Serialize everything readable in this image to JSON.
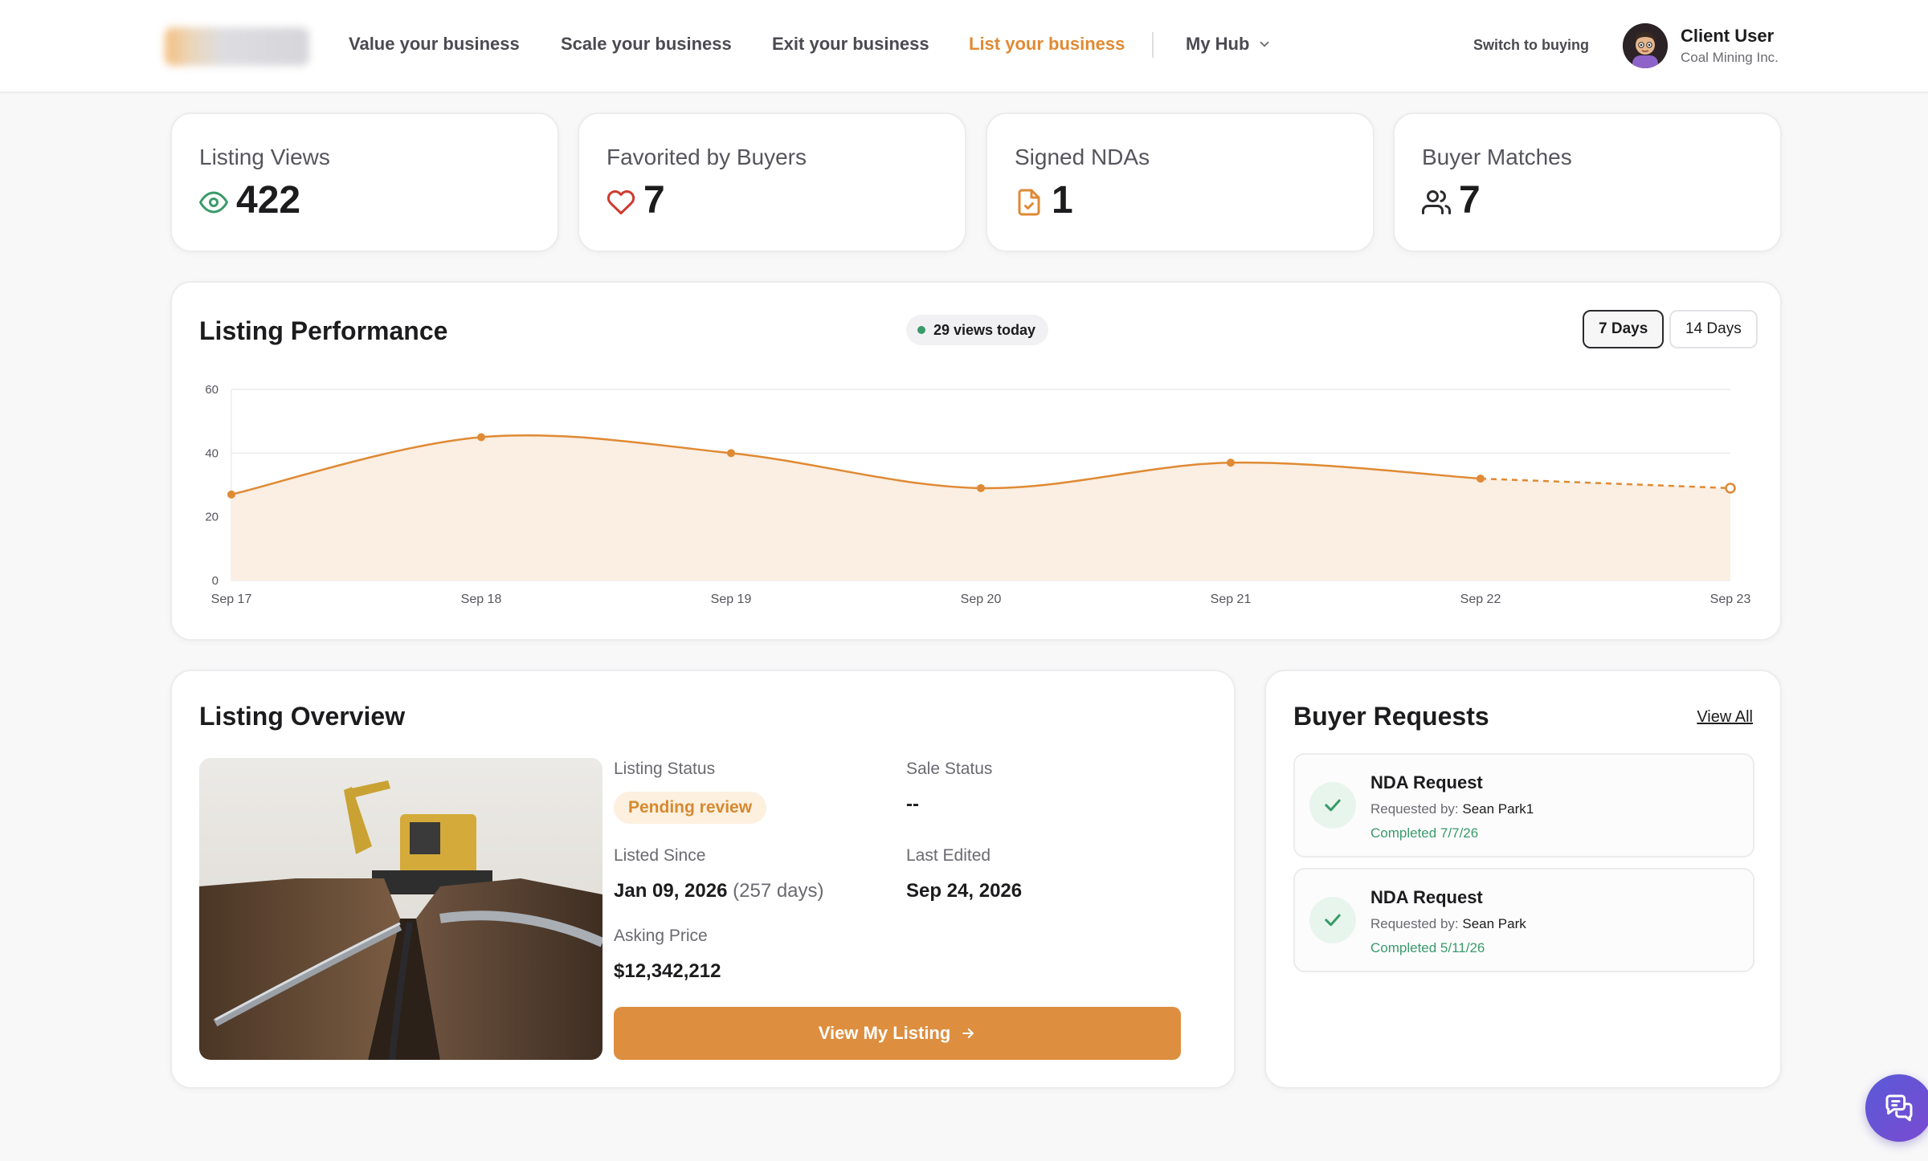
{
  "nav": {
    "items": [
      {
        "label": "Value your business",
        "active": false
      },
      {
        "label": "Scale your business",
        "active": false
      },
      {
        "label": "Exit your business",
        "active": false
      },
      {
        "label": "List your business",
        "active": true
      }
    ],
    "hub_label": "My Hub",
    "switch_label": "Switch to buying",
    "user": {
      "name": "Client User",
      "org": "Coal Mining Inc."
    }
  },
  "stats": [
    {
      "label": "Listing Views",
      "value": "422",
      "icon": "eye-icon"
    },
    {
      "label": "Favorited by Buyers",
      "value": "7",
      "icon": "heart-icon"
    },
    {
      "label": "Signed NDAs",
      "value": "1",
      "icon": "document-check-icon"
    },
    {
      "label": "Buyer Matches",
      "value": "7",
      "icon": "users-icon"
    }
  ],
  "performance": {
    "title": "Listing Performance",
    "today_pill": "29 views today",
    "ranges": [
      "7 Days",
      "14 Days"
    ],
    "selected_range": "7 Days"
  },
  "chart_data": {
    "type": "area",
    "x": [
      "Sep 17",
      "Sep 18",
      "Sep 19",
      "Sep 20",
      "Sep 21",
      "Sep 22",
      "Sep 23"
    ],
    "series": [
      {
        "values": [
          27,
          45,
          40,
          29,
          37,
          32,
          29
        ]
      }
    ],
    "projected_from_index": 5,
    "ylim": [
      0,
      60
    ],
    "yticks": [
      0,
      20,
      40,
      60
    ],
    "grid": true,
    "colors": {
      "line": "#df8a34",
      "fill": "#fbeee2",
      "grid": "#ececee"
    }
  },
  "overview": {
    "title": "Listing Overview",
    "status_label": "Listing Status",
    "status_value": "Pending review",
    "sale_label": "Sale Status",
    "sale_value": "--",
    "since_label": "Listed Since",
    "since_value": "Jan 09, 2026",
    "since_days": "(257 days)",
    "edited_label": "Last Edited",
    "edited_value": "Sep 24, 2026",
    "price_label": "Asking Price",
    "price_value": "$12,342,212",
    "cta_label": "View My Listing"
  },
  "requests": {
    "title": "Buyer Requests",
    "view_all": "View All",
    "by_prefix": "Requested by:",
    "items": [
      {
        "title": "NDA Request",
        "by": "Sean Park1",
        "completed": "Completed 7/7/26"
      },
      {
        "title": "NDA Request",
        "by": "Sean Park",
        "completed": "Completed 5/11/26"
      }
    ]
  },
  "colors": {
    "accent": "#df8a34",
    "success": "#3a9a6a",
    "text": "#1c1c1e"
  }
}
